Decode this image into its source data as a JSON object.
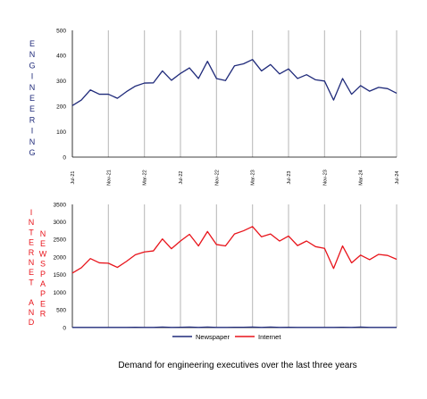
{
  "chart_data": [
    {
      "type": "line",
      "ylabel": "ENGINEERING",
      "ylim": [
        0,
        500
      ],
      "yticks": [
        0,
        100,
        200,
        300,
        400,
        500
      ],
      "x_tick_labels": [
        "Jul-21",
        "Nov-21",
        "Mar-22",
        "Jul-22",
        "Nov-22",
        "Mar-23",
        "Jul-23",
        "Nov-23",
        "Mar-24",
        "Jul-24"
      ],
      "vertical_gridlines": true,
      "series": [
        {
          "name": "Newspaper",
          "color": "#1f2a7a",
          "values": [
            203,
            225,
            265,
            248,
            248,
            232,
            258,
            280,
            292,
            293,
            340,
            303,
            330,
            352,
            310,
            378,
            310,
            302,
            360,
            368,
            385,
            340,
            365,
            328,
            348,
            310,
            325,
            305,
            300,
            225,
            310,
            248,
            282,
            260,
            275,
            270,
            252
          ]
        }
      ]
    },
    {
      "type": "line",
      "ylabel_left": "INTERNET AND",
      "ylabel_right": "NEWSPAPER",
      "ylim": [
        0,
        3500
      ],
      "yticks": [
        0,
        500,
        1000,
        1500,
        2000,
        2500,
        3000,
        3500
      ],
      "vertical_gridlines": true,
      "series": [
        {
          "name": "Newspaper",
          "color": "#1f2a7a",
          "values": [
            5,
            5,
            5,
            5,
            5,
            5,
            5,
            10,
            5,
            5,
            15,
            5,
            10,
            15,
            5,
            15,
            5,
            5,
            10,
            10,
            15,
            5,
            15,
            5,
            10,
            5,
            5,
            5,
            5,
            5,
            10,
            5,
            15,
            5,
            5,
            5,
            5
          ]
        },
        {
          "name": "Internet",
          "color": "#e8141b",
          "values": [
            1550,
            1700,
            1960,
            1840,
            1830,
            1710,
            1880,
            2070,
            2150,
            2180,
            2520,
            2240,
            2460,
            2650,
            2320,
            2730,
            2360,
            2320,
            2660,
            2750,
            2870,
            2580,
            2660,
            2460,
            2600,
            2330,
            2460,
            2300,
            2250,
            1680,
            2320,
            1840,
            2060,
            1930,
            2080,
            2050,
            1940
          ]
        }
      ]
    }
  ],
  "legend": [
    {
      "label": "Newspaper",
      "color": "#1f2a7a"
    },
    {
      "label": "Internet",
      "color": "#e8141b"
    }
  ],
  "caption": "Demand for engineering executives over the last three years"
}
